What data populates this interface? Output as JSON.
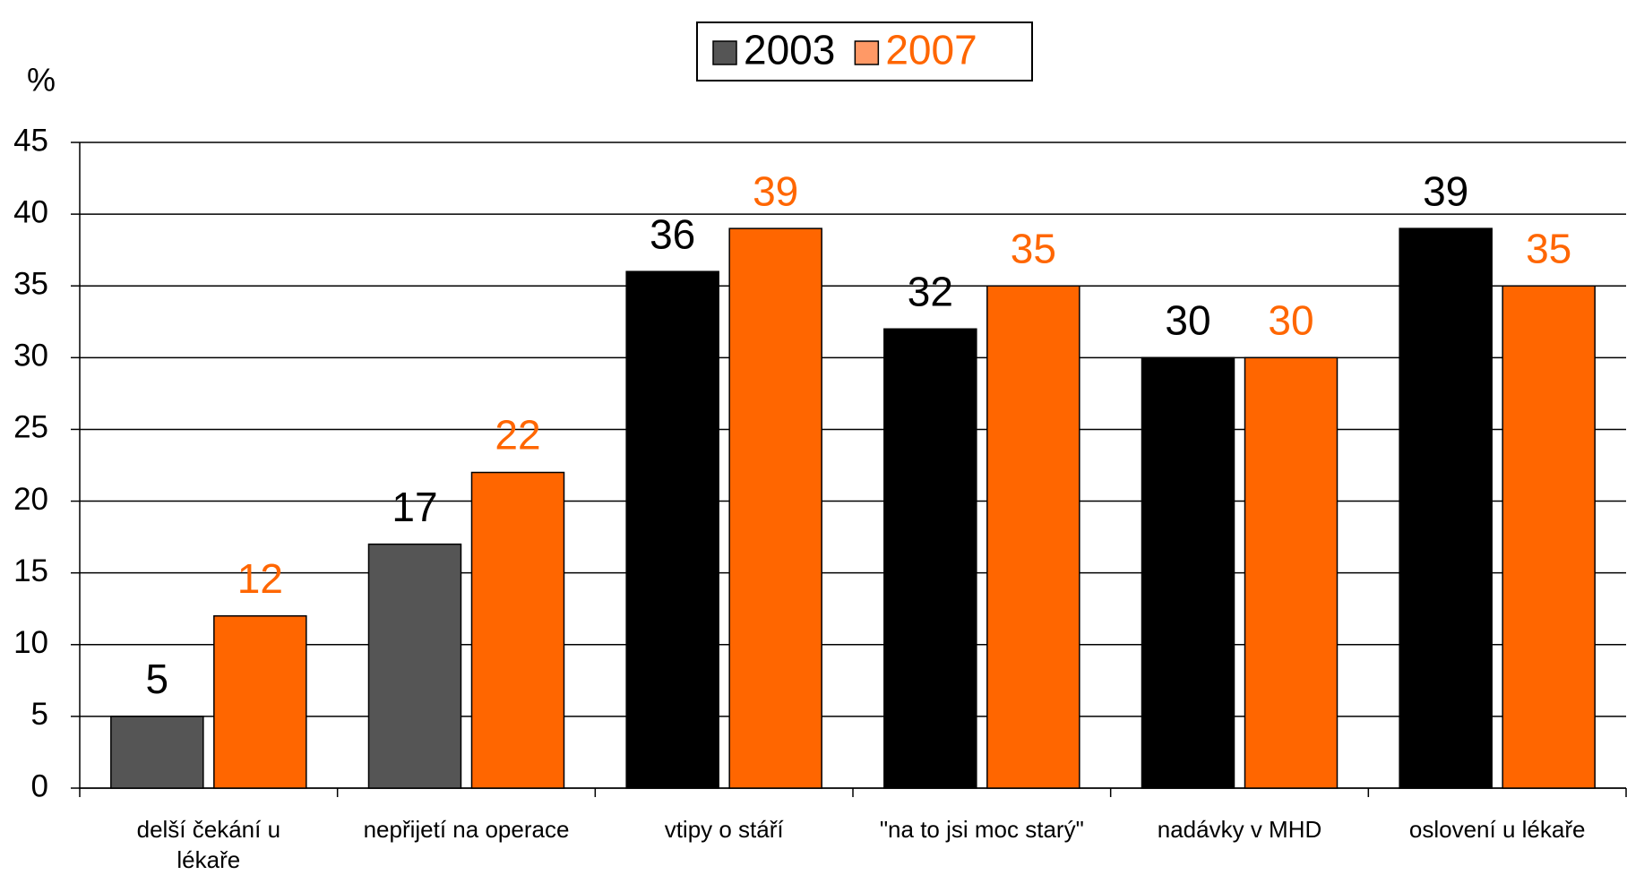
{
  "chart_data": {
    "type": "bar",
    "y_axis_label": "%",
    "categories": [
      "delší čekání u lékaře",
      "nepřijetí na operace",
      "vtipy o stáří",
      "\"na to jsi moc starý\"",
      "nadávky v MHD",
      "oslovení u lékaře"
    ],
    "series": [
      {
        "name": "2003",
        "colors": [
          "#555555",
          "#555555",
          "#000000",
          "#000000",
          "#000000",
          "#000000"
        ],
        "legend_color": "#555555",
        "label_color": "#000000",
        "values": [
          5,
          17,
          36,
          32,
          30,
          39
        ]
      },
      {
        "name": "2007",
        "colors": [
          "#ff6600",
          "#ff6600",
          "#ff6600",
          "#ff6600",
          "#ff6600",
          "#ff6600"
        ],
        "legend_color": "#ff9966",
        "label_color": "#ff6600",
        "values": [
          12,
          22,
          39,
          35,
          30,
          35
        ]
      }
    ],
    "ylim": [
      0,
      45
    ],
    "yticks": [
      0,
      5,
      10,
      15,
      20,
      25,
      30,
      35,
      40,
      45
    ],
    "grid": true,
    "legend": "top"
  }
}
